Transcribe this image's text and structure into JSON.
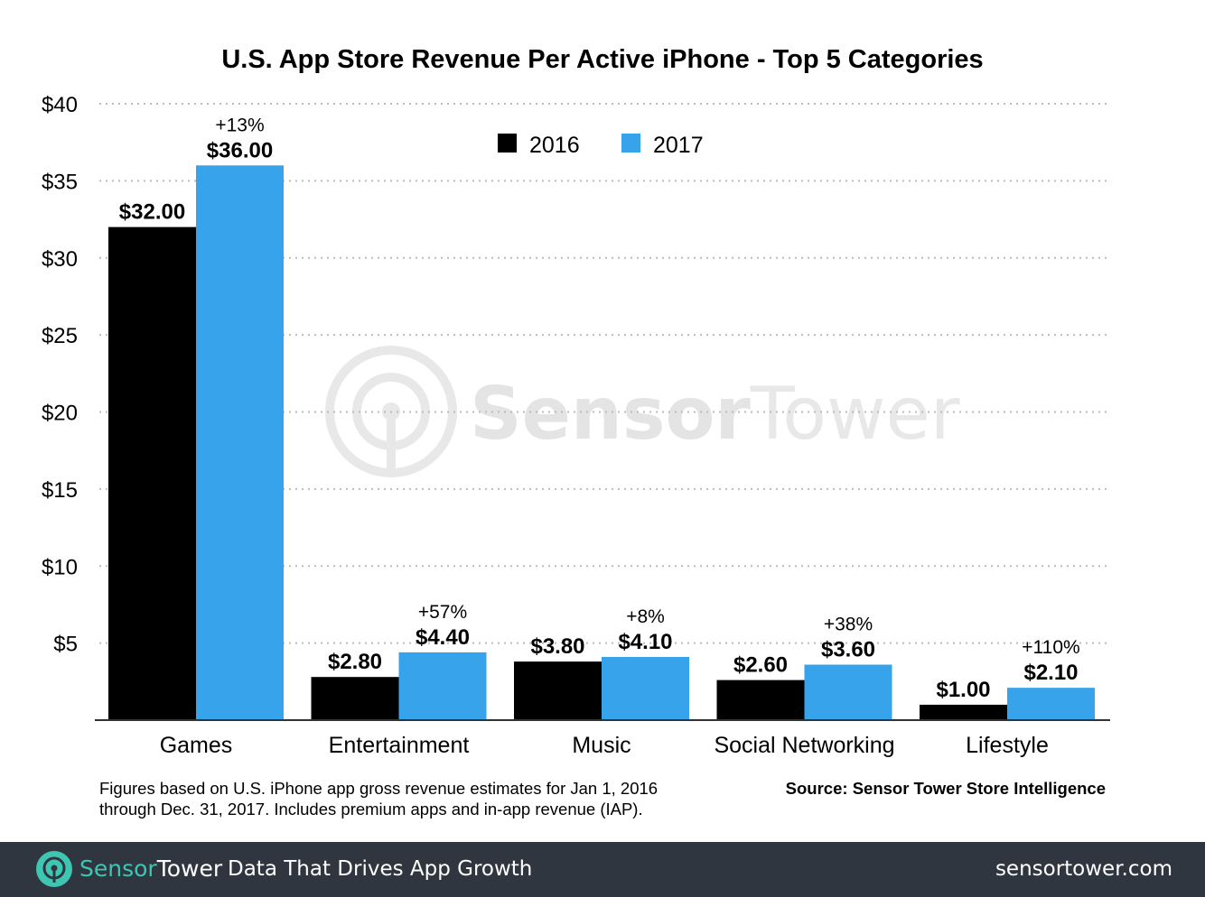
{
  "colors": {
    "series_2016": "#000000",
    "series_2017": "#36a3ea",
    "grid": "#bbbbbb",
    "footer_bg": "#2f3640",
    "brand_accent": "#3ec6b3",
    "watermark": "#e8e8e8"
  },
  "chart_data": {
    "type": "bar",
    "title": "U.S. App Store Revenue Per Active iPhone - Top 5 Categories",
    "categories": [
      "Games",
      "Entertainment",
      "Music",
      "Social Networking",
      "Lifestyle"
    ],
    "series": [
      {
        "name": "2016",
        "values": [
          32.0,
          2.8,
          3.8,
          2.6,
          1.0
        ],
        "labels": [
          "$32.00",
          "$2.80",
          "$3.80",
          "$2.60",
          "$1.00"
        ]
      },
      {
        "name": "2017",
        "values": [
          36.0,
          4.4,
          4.1,
          3.6,
          2.1
        ],
        "labels": [
          "$36.00",
          "$4.40",
          "$4.10",
          "$3.60",
          "$2.10"
        ]
      }
    ],
    "growth_labels": [
      "+13%",
      "+57%",
      "+8%",
      "+38%",
      "+110%"
    ],
    "y_ticks": [
      {
        "value": 5,
        "label": "$5"
      },
      {
        "value": 10,
        "label": "$10"
      },
      {
        "value": 15,
        "label": "$15"
      },
      {
        "value": 20,
        "label": "$20"
      },
      {
        "value": 25,
        "label": "$25"
      },
      {
        "value": 30,
        "label": "$30"
      },
      {
        "value": 35,
        "label": "$35"
      },
      {
        "value": 40,
        "label": "$40"
      }
    ],
    "ylim": [
      0,
      40
    ],
    "xlabel": "",
    "ylabel": "",
    "grid": "dotted horizontal",
    "legend_position": "top-center"
  },
  "watermark": {
    "brand_part1": "Sensor",
    "brand_part2": "Tower",
    "icon": "sensor-tower-logo-icon"
  },
  "footnote": {
    "line1": "Figures based on U.S. iPhone app gross revenue estimates for Jan 1, 2016",
    "line2": "through Dec. 31, 2017. Includes premium apps and in-app revenue (IAP)."
  },
  "source": "Source: Sensor Tower Store Intelligence",
  "footer": {
    "brand_part1": "Sensor",
    "brand_part2": "Tower",
    "tagline": "Data That Drives App Growth",
    "url": "sensortower.com",
    "logo_icon": "sensor-tower-logo-icon"
  }
}
